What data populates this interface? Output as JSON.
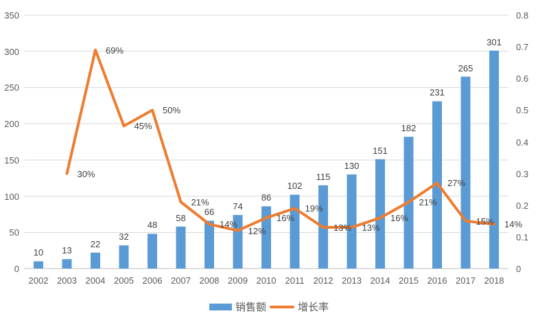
{
  "chart_data": {
    "type": "combo",
    "title": "",
    "categories": [
      "2002",
      "2003",
      "2004",
      "2005",
      "2006",
      "2007",
      "2008",
      "2009",
      "2010",
      "2011",
      "2012",
      "2013",
      "2014",
      "2015",
      "2016",
      "2017",
      "2018"
    ],
    "series": [
      {
        "name": "销售额",
        "type": "bar",
        "axis": "left",
        "color": "#5B9BD5",
        "values": [
          10,
          13,
          22,
          32,
          48,
          58,
          66,
          74,
          86,
          102,
          115,
          130,
          151,
          182,
          231,
          265,
          301
        ],
        "labels": [
          "10",
          "13",
          "22",
          "32",
          "48",
          "58",
          "66",
          "74",
          "86",
          "102",
          "115",
          "130",
          "151",
          "182",
          "231",
          "265",
          "301"
        ]
      },
      {
        "name": "增长率",
        "type": "line",
        "axis": "right",
        "color": "#ED7D31",
        "values": [
          null,
          0.3,
          0.69,
          0.45,
          0.5,
          0.21,
          0.14,
          0.12,
          0.16,
          0.19,
          0.13,
          0.13,
          0.16,
          0.21,
          0.27,
          0.15,
          0.14
        ],
        "labels": [
          null,
          "30%",
          "69%",
          "45%",
          "50%",
          "21%",
          "14%",
          "12%",
          "16%",
          "19%",
          "13%",
          "13%",
          "16%",
          "21%",
          "27%",
          "15%",
          "14%"
        ]
      }
    ],
    "left_axis": {
      "min": 0,
      "max": 350,
      "step": 50,
      "ticks": [
        "0",
        "50",
        "100",
        "150",
        "200",
        "250",
        "300",
        "350"
      ]
    },
    "right_axis": {
      "min": 0,
      "max": 0.8,
      "step": 0.1,
      "ticks": [
        "0",
        "0.1",
        "0.2",
        "0.3",
        "0.4",
        "0.5",
        "0.6",
        "0.7",
        "0.8"
      ]
    },
    "legend": {
      "position": "bottom",
      "items": [
        "销售额",
        "增长率"
      ]
    },
    "grid": true,
    "colors": {
      "bar": "#5B9BD5",
      "line": "#ED7D31",
      "gridline": "#D9D9D9",
      "axis_line": "#BFBFBF",
      "tick_text": "#595959",
      "data_label": "#404040",
      "background": "#FFFFFF"
    }
  }
}
